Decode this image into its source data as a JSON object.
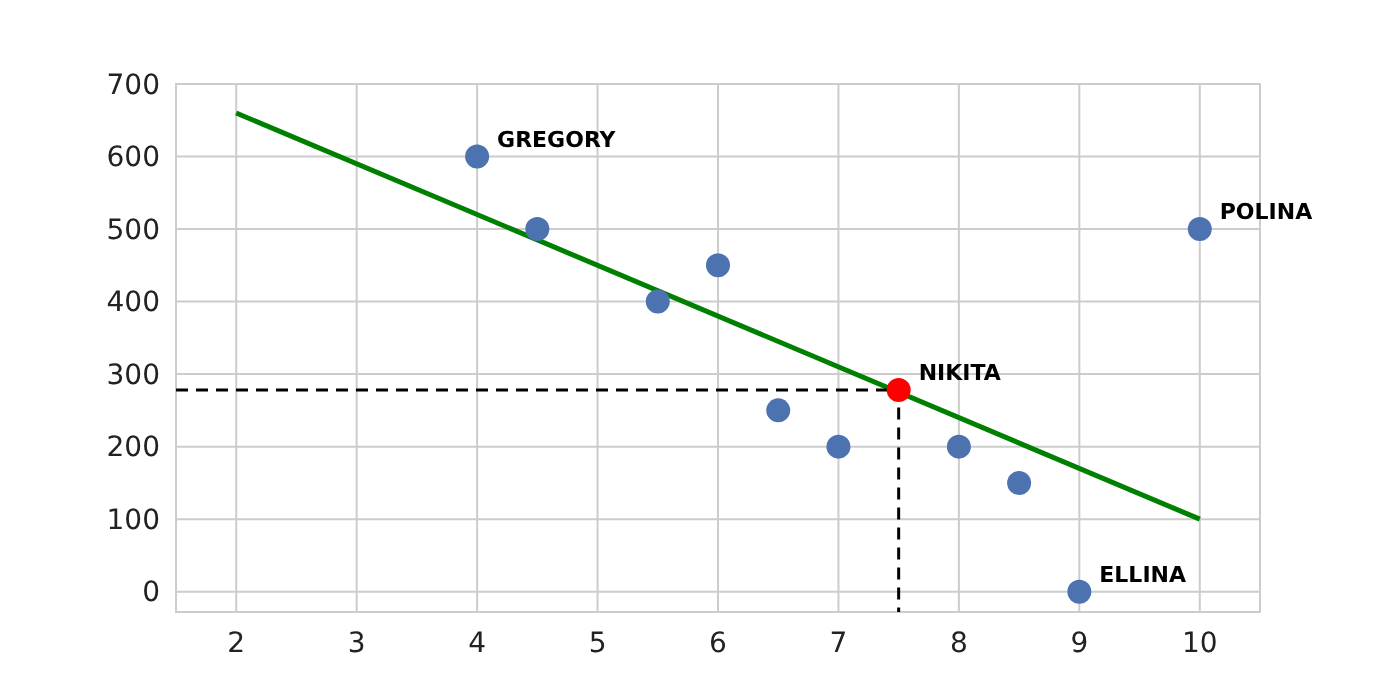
{
  "chart_data": {
    "type": "scatter",
    "xlim": [
      1.5,
      10.5
    ],
    "ylim": [
      -28,
      700
    ],
    "xticks": [
      2,
      3,
      4,
      5,
      6,
      7,
      8,
      9,
      10
    ],
    "yticks": [
      0,
      100,
      200,
      300,
      400,
      500,
      600,
      700
    ],
    "grid": true,
    "series": [
      {
        "type": "line",
        "color": "#008000",
        "x": [
          2,
          10
        ],
        "values": [
          660,
          100
        ]
      },
      {
        "type": "line",
        "color": "#000000",
        "line_style": "dashed",
        "x": [
          1.5,
          7.5,
          7.5
        ],
        "values": [
          278,
          278,
          -28
        ]
      },
      {
        "marker": "circle",
        "color": "#4c72b0",
        "x": [
          4,
          4.5,
          5.5,
          6,
          6.5,
          7,
          8,
          8.5,
          9,
          10
        ],
        "values": [
          600,
          500,
          400,
          450,
          250,
          200,
          200,
          150,
          0,
          500
        ]
      },
      {
        "marker": "circle",
        "color": "#ff0000",
        "x": [
          7.5
        ],
        "values": [
          278
        ]
      }
    ],
    "annotations": [
      {
        "text": "GREGORY",
        "x": 4,
        "y": 600
      },
      {
        "text": "POLINA",
        "x": 10,
        "y": 500
      },
      {
        "text": "NIKITA",
        "x": 7.5,
        "y": 278
      },
      {
        "text": "ELLINA",
        "x": 9,
        "y": 0
      }
    ]
  }
}
